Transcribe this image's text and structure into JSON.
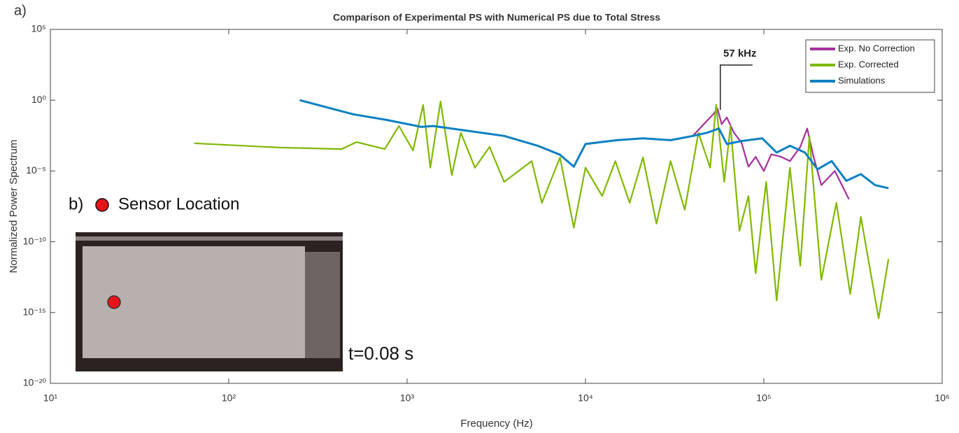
{
  "chart_data": {
    "type": "line",
    "panel_label": "a)",
    "title": "Comparison of Experimental PS with Numerical PS due to Total Stress",
    "x_label": "Frequency (Hz)",
    "y_label": "Normalized Power Spectrum",
    "log_x": true,
    "log_y": true,
    "xlim": [
      10,
      1000000
    ],
    "ylim": [
      1e-20,
      100000
    ],
    "xticks": [
      {
        "value": 10,
        "label": "10¹"
      },
      {
        "value": 100,
        "label": "10²"
      },
      {
        "value": 1000,
        "label": "10³"
      },
      {
        "value": 10000,
        "label": "10⁴"
      },
      {
        "value": 100000,
        "label": "10⁵"
      },
      {
        "value": 1000000,
        "label": "10⁶"
      }
    ],
    "yticks": [
      {
        "value": 1e-20,
        "label": "10⁻²⁰"
      },
      {
        "value": 1e-15,
        "label": "10⁻¹⁵"
      },
      {
        "value": 1e-10,
        "label": "10⁻¹⁰"
      },
      {
        "value": 1e-05,
        "label": "10⁻⁵"
      },
      {
        "value": 1,
        "label": "10⁰"
      },
      {
        "value": 100000,
        "label": "10⁵"
      }
    ],
    "legend": "upper right",
    "series": [
      {
        "name": "Exp. No Correction",
        "color": "#a4309b",
        "x": [
          40000,
          46000,
          52000,
          55000,
          58000,
          62000,
          68000,
          75000,
          82000,
          90000,
          100000,
          110000,
          125000,
          140000,
          160000,
          175000,
          190000,
          210000,
          250000,
          300000
        ],
        "values": [
          0.003,
          0.02,
          0.1,
          0.25,
          0.02,
          0.06,
          0.005,
          0.001,
          2e-05,
          0.0001,
          1e-05,
          0.00015,
          0.0001,
          5e-05,
          0.0005,
          0.01,
          0.0001,
          1e-06,
          1e-05,
          1e-07
        ]
      },
      {
        "name": "Exp. Corrected",
        "color": "#7fb800",
        "x": [
          64,
          190,
          430,
          520,
          750,
          900,
          1080,
          1230,
          1350,
          1540,
          1780,
          2000,
          2400,
          2900,
          3500,
          5000,
          5700,
          7200,
          8600,
          10000,
          12400,
          14700,
          17700,
          21000,
          25000,
          30000,
          36000,
          43000,
          50000,
          54000,
          60000,
          65000,
          73000,
          82000,
          90000,
          103000,
          118000,
          140000,
          160000,
          180000,
          210000,
          255000,
          305000,
          350000,
          440000,
          500000
        ],
        "values": [
          0.0009,
          0.00045,
          0.00035,
          0.0011,
          0.00035,
          0.015,
          0.00028,
          0.46,
          1.7e-05,
          0.8,
          5e-06,
          0.005,
          1.7e-05,
          0.0005,
          1.7e-06,
          5e-05,
          5.6e-08,
          9e-05,
          1e-09,
          1.7e-05,
          1.7e-07,
          5e-05,
          5.6e-08,
          9e-05,
          1.9e-09,
          5e-05,
          1.8e-08,
          0.005,
          1.7e-05,
          0.46,
          1.7e-06,
          0.015,
          6e-10,
          1.7e-07,
          6e-13,
          1.7e-06,
          7e-15,
          1.7e-05,
          2e-12,
          0.0028,
          2e-13,
          5.6e-08,
          2e-14,
          5.7e-09,
          4e-16,
          6e-12
        ]
      },
      {
        "name": "Simulations",
        "color": "#0b80c2",
        "x": [
          250,
          500,
          770,
          1200,
          1400,
          2000,
          3500,
          5400,
          7200,
          8600,
          10000,
          15000,
          21000,
          30000,
          40000,
          48000,
          56000,
          62000,
          75000,
          98000,
          118000,
          140000,
          170000,
          200000,
          240000,
          290000,
          350000,
          420000,
          500000
        ],
        "values": [
          1,
          0.1,
          0.04,
          0.013,
          0.015,
          0.008,
          0.003,
          0.0006,
          0.00014,
          2e-05,
          0.0008,
          0.0015,
          0.002,
          0.0015,
          0.003,
          0.005,
          0.01,
          0.0008,
          0.0013,
          0.002,
          0.0002,
          0.0006,
          0.0002,
          1.3e-05,
          5e-05,
          2e-06,
          6e-06,
          1e-06,
          6e-07
        ]
      }
    ],
    "annotations": [
      {
        "text": "57 kHz",
        "x": 57000
      }
    ],
    "inset_label": "b)",
    "inset_legend": "Sensor Location",
    "inset_caption": "t=0.08 s"
  }
}
